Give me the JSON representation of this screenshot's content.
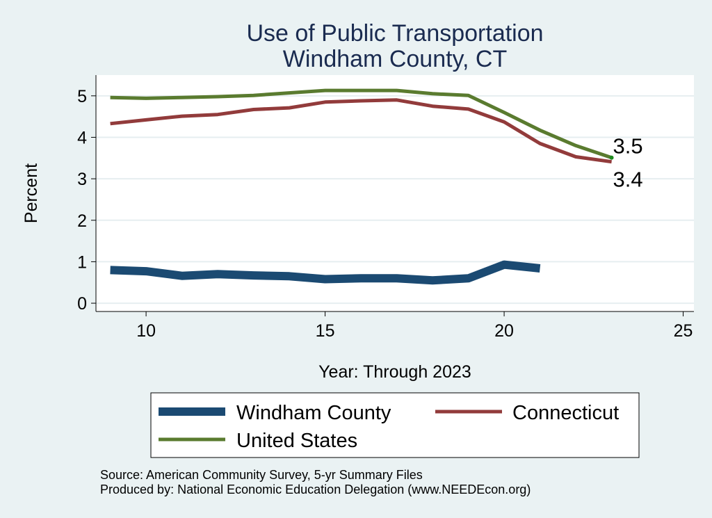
{
  "chart_data": {
    "type": "line",
    "title": [
      "Use of Public Transportation",
      "Windham County, CT"
    ],
    "xlabel": "Year: Through 2023",
    "ylabel": "Percent",
    "xlim": [
      8.6,
      25.3
    ],
    "ylim": [
      -0.2,
      5.5
    ],
    "xticks": [
      10,
      15,
      20,
      25
    ],
    "yticks": [
      0,
      1,
      2,
      3,
      4,
      5
    ],
    "grid": true,
    "legend_position": "bottom",
    "series": [
      {
        "name": "Windham County",
        "color": "#1b4a72",
        "line_width": 12,
        "x": [
          9,
          10,
          11,
          12,
          13,
          14,
          15,
          16,
          17,
          18,
          19,
          20,
          21
        ],
        "y": [
          0.8,
          0.77,
          0.66,
          0.7,
          0.67,
          0.65,
          0.58,
          0.6,
          0.6,
          0.55,
          0.6,
          0.93,
          0.84
        ]
      },
      {
        "name": "Connecticut",
        "color": "#923b3b",
        "line_width": 5,
        "x": [
          9,
          10,
          11,
          12,
          13,
          14,
          15,
          16,
          17,
          18,
          19,
          20,
          21,
          22,
          23
        ],
        "y": [
          4.33,
          4.42,
          4.51,
          4.55,
          4.67,
          4.71,
          4.85,
          4.88,
          4.9,
          4.75,
          4.68,
          4.37,
          3.85,
          3.53,
          3.41
        ]
      },
      {
        "name": "United States",
        "color": "#5a7b2f",
        "line_width": 5,
        "x": [
          9,
          10,
          11,
          12,
          13,
          14,
          15,
          16,
          17,
          18,
          19,
          20,
          21,
          22,
          23
        ],
        "y": [
          4.96,
          4.94,
          4.96,
          4.98,
          5.01,
          5.07,
          5.13,
          5.13,
          5.13,
          5.05,
          5.01,
          4.6,
          4.17,
          3.8,
          3.51
        ]
      }
    ],
    "annotations": [
      {
        "text": "3.5",
        "x": 23,
        "y": 3.51,
        "series": "United States"
      },
      {
        "text": "3.4",
        "x": 23,
        "y": 3.41,
        "series": "Connecticut"
      }
    ]
  },
  "notes": [
    "Source: American Community Survey, 5-yr Summary Files",
    "Produced by: National Economic Education Delegation (www.NEEDEcon.org)"
  ]
}
